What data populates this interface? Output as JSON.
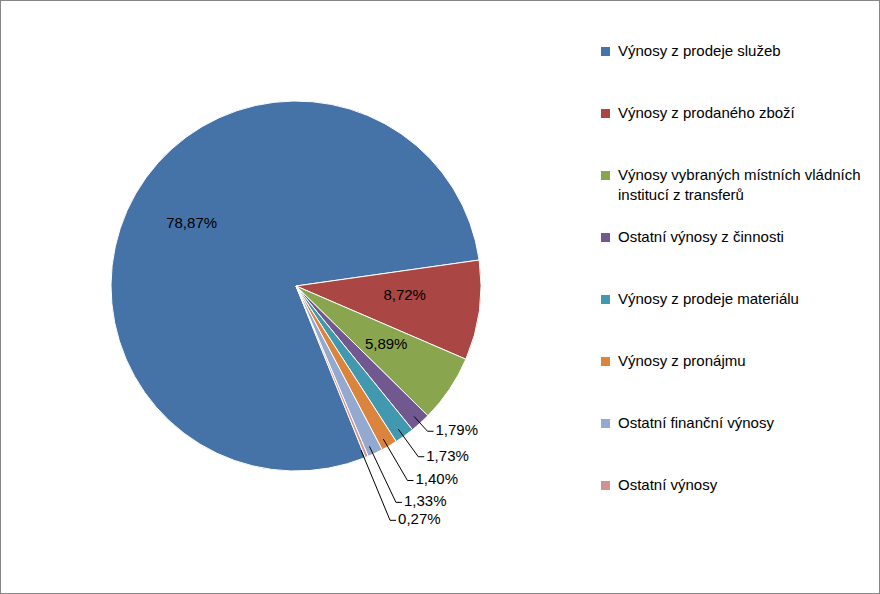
{
  "chart_data": {
    "type": "pie",
    "categories": [
      "Výnosy z prodeje služeb",
      "Výnosy z prodaného zboží",
      "Výnosy vybraných místních vládních institucí z transferů",
      "Ostatní výnosy z činnosti",
      "Výnosy z prodeje materiálu",
      "Výnosy z pronájmu",
      "Ostatní finanční výnosy",
      "Ostatní výnosy"
    ],
    "values": [
      78.87,
      8.72,
      5.89,
      1.79,
      1.73,
      1.4,
      1.33,
      0.27
    ],
    "value_labels": [
      "78,87%",
      "8,72%",
      "5,89%",
      "1,79%",
      "1,73%",
      "1,40%",
      "1,33%",
      "0,27%"
    ],
    "colors": [
      "#4572a7",
      "#aa4643",
      "#89a54e",
      "#71588f",
      "#4198af",
      "#db843d",
      "#93a9cf",
      "#d19392"
    ],
    "data_labels": true,
    "legend": "right"
  }
}
